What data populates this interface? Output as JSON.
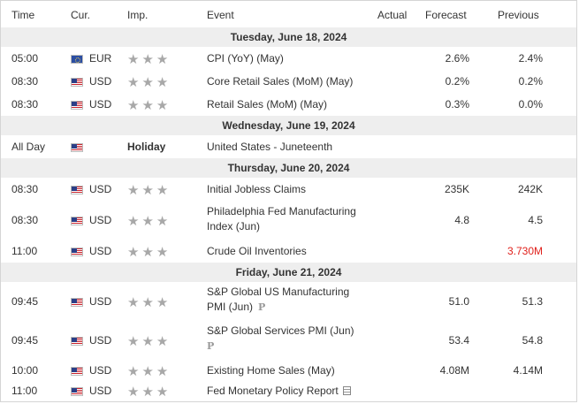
{
  "columns": {
    "time": "Time",
    "currency": "Cur.",
    "importance": "Imp.",
    "event": "Event",
    "actual": "Actual",
    "forecast": "Forecast",
    "previous": "Previous"
  },
  "dates": [
    "Tuesday, June 18, 2024",
    "Wednesday, June 19, 2024",
    "Thursday, June 20, 2024",
    "Friday, June 21, 2024"
  ],
  "stars": "★★★",
  "badge_letter": "P",
  "holiday_label": "Holiday",
  "events": [
    {
      "time": "05:00",
      "cur": "EUR",
      "flag": "eu-flag-icon",
      "event": "CPI (YoY) (May)",
      "actual": "",
      "forecast": "2.6%",
      "previous": "2.4%"
    },
    {
      "time": "08:30",
      "cur": "USD",
      "flag": "us-flag-icon",
      "event": "Core Retail Sales (MoM) (May)",
      "actual": "",
      "forecast": "0.2%",
      "previous": "0.2%"
    },
    {
      "time": "08:30",
      "cur": "USD",
      "flag": "us-flag-icon",
      "event": "Retail Sales (MoM) (May)",
      "actual": "",
      "forecast": "0.3%",
      "previous": "0.0%"
    },
    {
      "time": "All Day",
      "cur": "",
      "flag": "us-flag-icon",
      "event": "United States - Juneteenth",
      "actual": "",
      "forecast": "",
      "previous": ""
    },
    {
      "time": "08:30",
      "cur": "USD",
      "flag": "us-flag-icon",
      "event": "Initial Jobless Claims",
      "actual": "",
      "forecast": "235K",
      "previous": "242K"
    },
    {
      "time": "08:30",
      "cur": "USD",
      "flag": "us-flag-icon",
      "event": "Philadelphia Fed Manufacturing Index (Jun)",
      "actual": "",
      "forecast": "4.8",
      "previous": "4.5"
    },
    {
      "time": "11:00",
      "cur": "USD",
      "flag": "us-flag-icon",
      "event": "Crude Oil Inventories",
      "actual": "",
      "forecast": "",
      "previous": "3.730M"
    },
    {
      "time": "09:45",
      "cur": "USD",
      "flag": "us-flag-icon",
      "event": "S&P Global US Manufacturing PMI (Jun)",
      "actual": "",
      "forecast": "51.0",
      "previous": "51.3"
    },
    {
      "time": "09:45",
      "cur": "USD",
      "flag": "us-flag-icon",
      "event": "S&P Global Services PMI (Jun)",
      "actual": "",
      "forecast": "53.4",
      "previous": "54.8"
    },
    {
      "time": "10:00",
      "cur": "USD",
      "flag": "us-flag-icon",
      "event": "Existing Home Sales (May)",
      "actual": "",
      "forecast": "4.08M",
      "previous": "4.14M"
    },
    {
      "time": "11:00",
      "cur": "USD",
      "flag": "us-flag-icon",
      "event": "Fed Monetary Policy Report",
      "actual": "",
      "forecast": "",
      "previous": ""
    }
  ],
  "colors": {
    "date_row_bg": "#eeeeee",
    "negative_previous": "#e0201b",
    "star": "#a8a8a8"
  }
}
